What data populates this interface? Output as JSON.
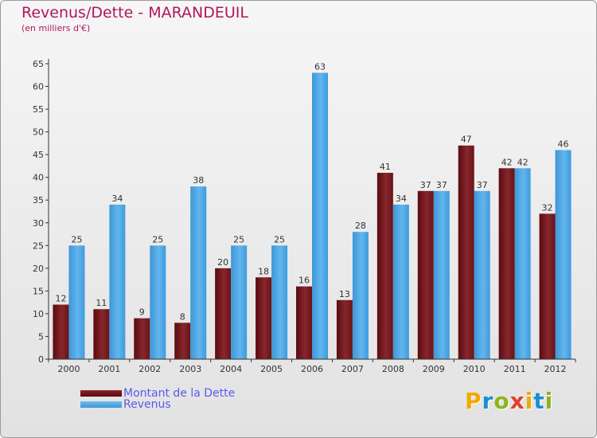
{
  "title": "Revenus/Dette - MARANDEUIL",
  "subtitle": "(en milliers d'€)",
  "legend": [
    {
      "label": "Montant de la Dette",
      "color": "#7a1a1f"
    },
    {
      "label": "Revenus",
      "color": "#4ba6e6"
    }
  ],
  "logo": {
    "letters": [
      "P",
      "r",
      "o",
      "x",
      "i",
      "t",
      "i"
    ],
    "colors": [
      "#f2a900",
      "#1a8fd0",
      "#8ab51e",
      "#e0402a",
      "#f2a900",
      "#1a8fd0",
      "#8ab51e"
    ]
  },
  "chart_data": {
    "type": "bar",
    "title": "Revenus/Dette - MARANDEUIL",
    "subtitle": "(en milliers d'€)",
    "categories": [
      "2000",
      "2001",
      "2002",
      "2003",
      "2004",
      "2005",
      "2006",
      "2007",
      "2008",
      "2009",
      "2010",
      "2011",
      "2012"
    ],
    "series": [
      {
        "name": "Montant de la Dette",
        "color": "#7a1a1f",
        "values": [
          12,
          11,
          9,
          8,
          20,
          18,
          16,
          13,
          41,
          37,
          47,
          42,
          32
        ]
      },
      {
        "name": "Revenus",
        "color": "#4ba6e6",
        "values": [
          25,
          34,
          25,
          38,
          25,
          25,
          63,
          28,
          34,
          37,
          37,
          42,
          46
        ]
      }
    ],
    "ylim": [
      0,
      65
    ],
    "yticks": [
      0,
      5,
      10,
      15,
      20,
      25,
      30,
      35,
      40,
      45,
      50,
      55,
      60,
      65
    ],
    "grid": false,
    "legend_position": "bottom-left"
  }
}
